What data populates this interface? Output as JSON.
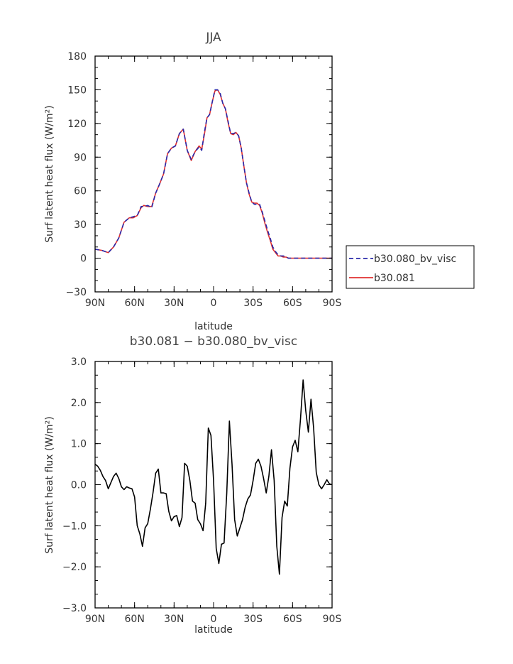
{
  "chart_data": [
    {
      "type": "line",
      "title": "JJA",
      "xlabel": "latitude",
      "ylabel": "Surf latent heat flux (W/m²)",
      "xticks": [
        "90N",
        "60N",
        "30N",
        "0",
        "30S",
        "60S",
        "90S"
      ],
      "xlim": [
        -90,
        90
      ],
      "ylim": [
        -30,
        180
      ],
      "yticks": [
        "−30",
        "0",
        "30",
        "60",
        "90",
        "120",
        "150",
        "180"
      ],
      "legend_placement": "right",
      "x": [
        -90,
        -85,
        -80,
        -76,
        -72,
        -68,
        -64,
        -61,
        -58,
        -55,
        -53,
        -50,
        -47,
        -44,
        -41,
        -38,
        -35,
        -32,
        -29,
        -26,
        -23,
        -20,
        -17,
        -14,
        -11,
        -9,
        -7,
        -5,
        -3,
        -1,
        1,
        3,
        5,
        7,
        9,
        11,
        13,
        15,
        17,
        19,
        21,
        23,
        25,
        27,
        29,
        31,
        33,
        35,
        37,
        39,
        41,
        43,
        45,
        47,
        49,
        51,
        53,
        55,
        57,
        59,
        61,
        63,
        65,
        67,
        69,
        71,
        73,
        75,
        77,
        80,
        83,
        86,
        90
      ],
      "series": [
        {
          "name": "b30.080_bv_visc",
          "color": "#2a2aaa",
          "dash": "dashed",
          "values": [
            8,
            7,
            5,
            10,
            18,
            32,
            36,
            37,
            38,
            46,
            46,
            47,
            45,
            58,
            66,
            75,
            93,
            98,
            100,
            111,
            115,
            96,
            88,
            95,
            99,
            96,
            112,
            125,
            128,
            139,
            150,
            150,
            147,
            138,
            133,
            122,
            111,
            111,
            112,
            109,
            98,
            82,
            67,
            58,
            50,
            48,
            48,
            48,
            41,
            33,
            25,
            18,
            10,
            6,
            3,
            2,
            2,
            1,
            0,
            0,
            0,
            0,
            0,
            0,
            0,
            0,
            0,
            0,
            0,
            0,
            0,
            0,
            0
          ]
        },
        {
          "name": "b30.081",
          "color": "#e03030",
          "dash": "solid",
          "values": [
            8,
            7,
            5,
            10,
            18,
            32,
            36,
            36,
            38,
            45,
            47,
            46,
            46,
            58,
            66,
            75,
            93,
            98,
            100,
            111,
            115,
            96,
            87,
            95,
            100,
            97,
            110,
            125,
            128,
            139,
            149,
            150,
            146,
            138,
            133,
            121,
            111,
            110,
            112,
            109,
            98,
            82,
            67,
            57,
            50,
            49,
            49,
            47,
            40,
            31,
            23,
            16,
            8,
            5,
            2,
            2,
            1,
            1,
            0,
            0,
            0,
            0,
            0,
            0,
            0,
            0,
            0,
            0,
            0,
            0,
            0,
            0,
            0
          ]
        }
      ]
    },
    {
      "type": "line",
      "title": "b30.081 − b30.080_bv_visc",
      "xlabel": "latitude",
      "ylabel": "Surf latent heat flux (W/m²)",
      "xticks": [
        "90N",
        "60N",
        "30N",
        "0",
        "30S",
        "60S",
        "90S"
      ],
      "xlim": [
        -90,
        90
      ],
      "ylim": [
        -3,
        3
      ],
      "yticks": [
        "−3.0",
        "−2.0",
        "−1.0",
        "0.0",
        "1.0",
        "2.0",
        "3.0"
      ],
      "x": [
        -90,
        -88,
        -86,
        -84,
        -82,
        -80,
        -78,
        -76,
        -74,
        -72,
        -70,
        -68,
        -66,
        -64,
        -62,
        -60,
        -58,
        -56,
        -54,
        -52,
        -50,
        -48,
        -46,
        -44,
        -42,
        -40,
        -38,
        -36,
        -34,
        -32,
        -30,
        -28,
        -26,
        -24,
        -22,
        -20,
        -18,
        -16,
        -14,
        -12,
        -10,
        -8,
        -6,
        -4,
        -2,
        0,
        2,
        4,
        6,
        8,
        10,
        12,
        14,
        16,
        18,
        20,
        22,
        24,
        26,
        28,
        30,
        32,
        34,
        36,
        38,
        40,
        42,
        44,
        46,
        48,
        50,
        52,
        54,
        56,
        58,
        60,
        62,
        64,
        66,
        68,
        70,
        72,
        74,
        76,
        78,
        80,
        82,
        84,
        86,
        88,
        90
      ],
      "series": [
        {
          "color": "#000000",
          "values": [
            0.5,
            0.45,
            0.35,
            0.2,
            0.1,
            -0.1,
            0.05,
            0.2,
            0.28,
            0.15,
            -0.05,
            -0.12,
            -0.05,
            -0.08,
            -0.1,
            -0.3,
            -1.0,
            -1.2,
            -1.5,
            -1.05,
            -0.95,
            -0.6,
            -0.2,
            0.28,
            0.38,
            -0.2,
            -0.2,
            -0.22,
            -0.65,
            -0.88,
            -0.78,
            -0.75,
            -1.02,
            -0.8,
            0.52,
            0.45,
            0.1,
            -0.4,
            -0.45,
            -0.85,
            -0.95,
            -1.12,
            -0.45,
            1.38,
            1.2,
            0.1,
            -1.55,
            -1.92,
            -1.45,
            -1.42,
            -0.2,
            1.55,
            0.5,
            -0.85,
            -1.25,
            -1.05,
            -0.85,
            -0.55,
            -0.35,
            -0.25,
            0.1,
            0.52,
            0.62,
            0.45,
            0.15,
            -0.2,
            0.2,
            0.85,
            0.1,
            -1.5,
            -2.18,
            -0.8,
            -0.4,
            -0.52,
            0.4,
            0.92,
            1.08,
            0.8,
            1.6,
            2.55,
            1.8,
            1.28,
            2.08,
            1.38,
            0.3,
            0.0,
            -0.1,
            0.0,
            0.12,
            0.02,
            0.0
          ]
        }
      ]
    }
  ]
}
